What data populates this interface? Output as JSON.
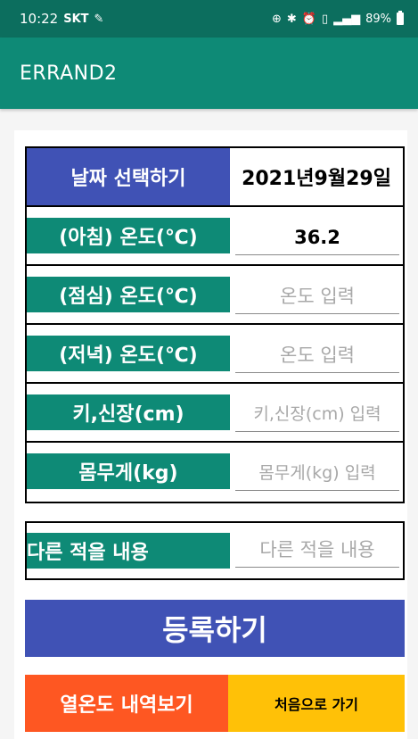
{
  "status_bar": {
    "time": "10:22",
    "carrier": "SKT",
    "battery": "89%",
    "icons": [
      "location-icon",
      "bluetooth-icon",
      "alarm-icon",
      "vibrate-icon",
      "signal-icon",
      "battery-icon"
    ]
  },
  "app_bar": {
    "title": "ERRAND2"
  },
  "form": {
    "date": {
      "label": "날짜 선택하기",
      "value": "2021년9월29일"
    },
    "morning_temp": {
      "label": "(아침) 온도(℃)",
      "value": "36.2",
      "placeholder": "온도 입력"
    },
    "lunch_temp": {
      "label": "(점심) 온도(℃)",
      "value": "",
      "placeholder": "온도 입력"
    },
    "dinner_temp": {
      "label": "(저녁) 온도(℃)",
      "value": "",
      "placeholder": "온도 입력"
    },
    "height": {
      "label": "키,신장(cm)",
      "value": "",
      "placeholder": "키,신장(cm) 입력"
    },
    "weight": {
      "label": "몸무게(kg)",
      "value": "",
      "placeholder": "몸무게(kg) 입력"
    },
    "memo": {
      "label": "다른 적을 내용",
      "value": "",
      "placeholder": "다른 적을 내용"
    }
  },
  "buttons": {
    "register": "등록하기",
    "history": "열온도 내역보기",
    "home": "처음으로 가기"
  },
  "colors": {
    "status_bar": "#0c6e5e",
    "app_bar": "#0e8a76",
    "teal_label": "#0e8a76",
    "indigo": "#4052b5",
    "orange": "#fe5722",
    "amber": "#ffc107"
  }
}
